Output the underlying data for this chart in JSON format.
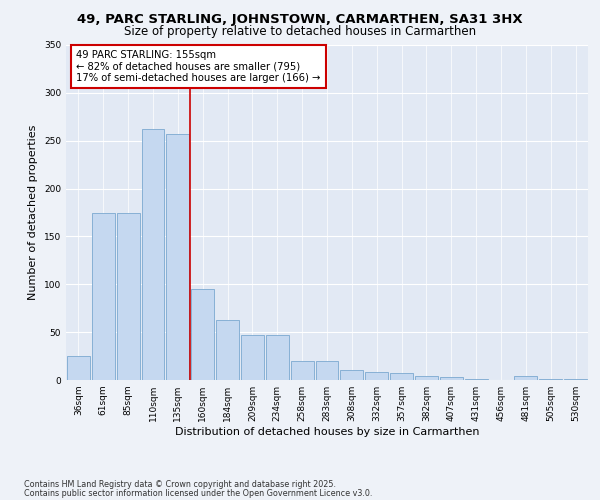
{
  "title": "49, PARC STARLING, JOHNSTOWN, CARMARTHEN, SA31 3HX",
  "subtitle": "Size of property relative to detached houses in Carmarthen",
  "xlabel": "Distribution of detached houses by size in Carmarthen",
  "ylabel": "Number of detached properties",
  "categories": [
    "36sqm",
    "61sqm",
    "85sqm",
    "110sqm",
    "135sqm",
    "160sqm",
    "184sqm",
    "209sqm",
    "234sqm",
    "258sqm",
    "283sqm",
    "308sqm",
    "332sqm",
    "357sqm",
    "382sqm",
    "407sqm",
    "431sqm",
    "456sqm",
    "481sqm",
    "505sqm",
    "530sqm"
  ],
  "values": [
    25,
    175,
    175,
    262,
    257,
    95,
    63,
    47,
    47,
    20,
    20,
    10,
    8,
    7,
    4,
    3,
    1,
    0,
    4,
    1,
    1
  ],
  "bar_color": "#c5d8f0",
  "bar_edge_color": "#7ba8d0",
  "annotation_text_line1": "49 PARC STARLING: 155sqm",
  "annotation_text_line2": "← 82% of detached houses are smaller (795)",
  "annotation_text_line3": "17% of semi-detached houses are larger (166) →",
  "annotation_box_color": "#ffffff",
  "annotation_box_edge": "#cc0000",
  "vline_color": "#cc0000",
  "ylim": [
    0,
    350
  ],
  "yticks": [
    0,
    50,
    100,
    150,
    200,
    250,
    300,
    350
  ],
  "footnote1": "Contains HM Land Registry data © Crown copyright and database right 2025.",
  "footnote2": "Contains public sector information licensed under the Open Government Licence v3.0.",
  "bg_color": "#eef2f8",
  "plot_bg_color": "#e2e9f4",
  "title_fontsize": 9.5,
  "subtitle_fontsize": 8.5,
  "tick_fontsize": 6.5,
  "xlabel_fontsize": 8,
  "ylabel_fontsize": 8,
  "footnote_fontsize": 5.8,
  "annotation_fontsize": 7.2
}
